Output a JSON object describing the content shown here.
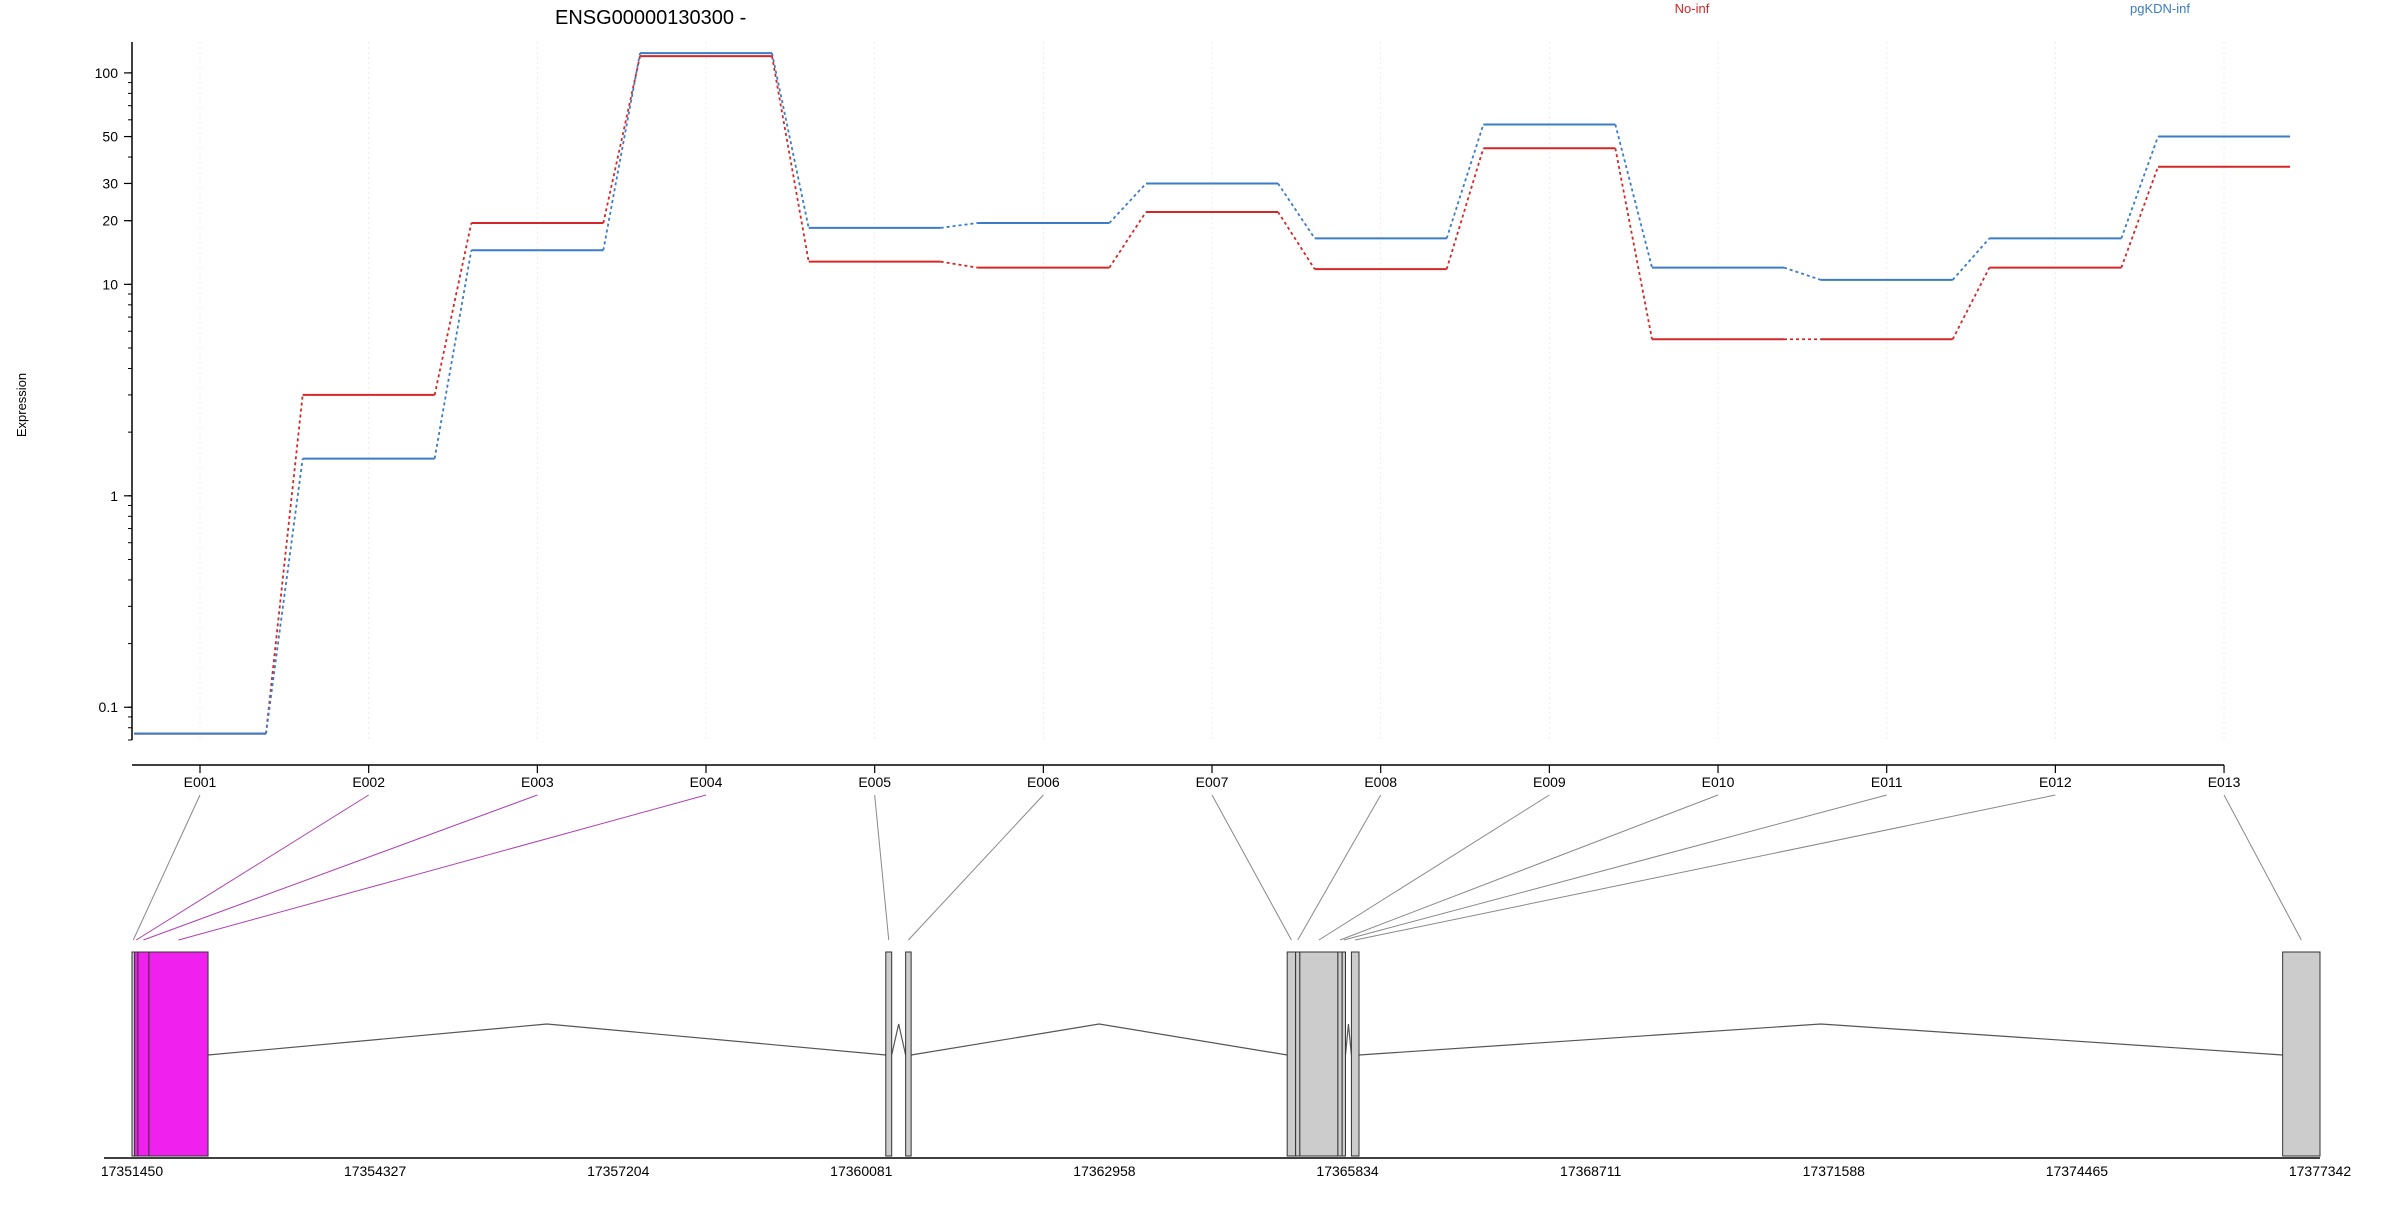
{
  "chart_data": {
    "type": "line",
    "title": "ENSG00000130300 -",
    "ylabel": "Expression",
    "yscale": "log",
    "y_ticks": [
      0.1,
      1,
      10,
      20,
      30,
      50,
      100
    ],
    "y_tick_labels": [
      "0.1",
      "1",
      "10",
      "20",
      "30",
      "50",
      "100"
    ],
    "ylim": [
      0.07,
      140
    ],
    "grid": "vertical",
    "legend_position": "top-right",
    "categories": [
      "E001",
      "E002",
      "E003",
      "E004",
      "E005",
      "E006",
      "E007",
      "E008",
      "E009",
      "E010",
      "E011",
      "E012",
      "E013"
    ],
    "series": [
      {
        "name": "No-inf",
        "color": "#d62728",
        "values": [
          0.075,
          3.0,
          19.5,
          120,
          12.8,
          12.0,
          22.0,
          11.8,
          44.0,
          5.5,
          5.5,
          12.0,
          36.0
        ]
      },
      {
        "name": "pgKDN-inf",
        "color": "#3a7cc7",
        "values": [
          0.075,
          1.5,
          14.5,
          124,
          18.5,
          19.5,
          30.0,
          16.5,
          57.0,
          12.0,
          10.5,
          16.5,
          50.0
        ]
      }
    ],
    "genomic_axis": {
      "tick_labels": [
        "17351450",
        "17354327",
        "17357204",
        "17360081",
        "17362958",
        "17365834",
        "17368711",
        "17371588",
        "17374465",
        "17377342"
      ],
      "range": [
        17351450,
        17377342
      ]
    },
    "gene_model": {
      "exon_color": "#cccccc",
      "highlight_color": "#f020ee",
      "highlighted_exons": [
        "E002",
        "E003",
        "E004"
      ],
      "exons": [
        {
          "id": "E001",
          "start": 17351450,
          "end": 17351480
        },
        {
          "id": "E002",
          "start": 17351480,
          "end": 17351520
        },
        {
          "id": "E003",
          "start": 17351520,
          "end": 17351650
        },
        {
          "id": "E004",
          "start": 17351650,
          "end": 17352350
        },
        {
          "id": "E005",
          "start": 17360370,
          "end": 17360440
        },
        {
          "id": "E006",
          "start": 17360605,
          "end": 17360670
        },
        {
          "id": "E007",
          "start": 17365120,
          "end": 17365220
        },
        {
          "id": "E008",
          "start": 17365220,
          "end": 17365270
        },
        {
          "id": "E009",
          "start": 17365270,
          "end": 17365720
        },
        {
          "id": "E010",
          "start": 17365720,
          "end": 17365770
        },
        {
          "id": "E011",
          "start": 17365770,
          "end": 17365810
        },
        {
          "id": "E012",
          "start": 17365880,
          "end": 17365970
        },
        {
          "id": "E013",
          "start": 17376900,
          "end": 17377342
        }
      ],
      "introns": [
        {
          "from": 17352350,
          "to": 17360370
        },
        {
          "from": 17360440,
          "to": 17360605
        },
        {
          "from": 17360670,
          "to": 17365120
        },
        {
          "from": 17365810,
          "to": 17365880
        },
        {
          "from": 17365970,
          "to": 17376900
        }
      ]
    }
  }
}
